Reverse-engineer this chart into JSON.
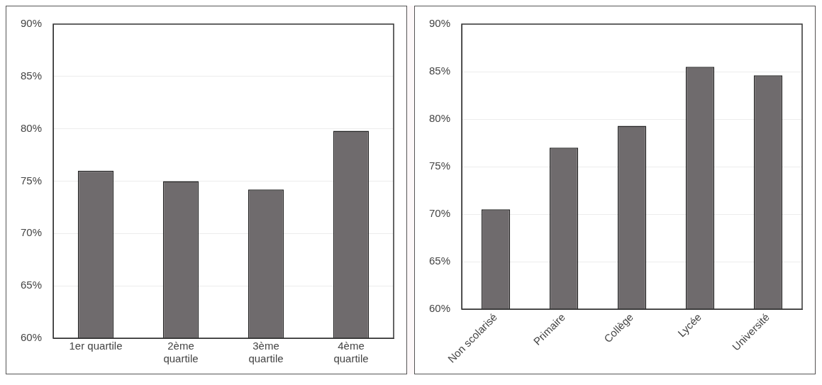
{
  "chart_data": [
    {
      "type": "bar",
      "categories": [
        "1er quartile",
        "2ème quartile",
        "3ème quartile",
        "4ème quartile"
      ],
      "values": [
        76,
        75,
        74.2,
        79.8
      ],
      "color": "#6f6b6d",
      "ylim": [
        60,
        90
      ],
      "yticks": [
        {
          "value": 60,
          "label": "60%"
        },
        {
          "value": 65,
          "label": "65%"
        },
        {
          "value": 70,
          "label": "70%"
        },
        {
          "value": 75,
          "label": "75%"
        },
        {
          "value": 80,
          "label": "80%"
        },
        {
          "value": 85,
          "label": "85%"
        },
        {
          "value": 90,
          "label": "90%"
        }
      ],
      "grid": "y"
    },
    {
      "type": "bar",
      "categories": [
        "Non scolarisé",
        "Primaire",
        "Collège",
        "Lycée",
        "Université"
      ],
      "values": [
        70.5,
        77,
        79.3,
        85.5,
        84.6
      ],
      "color": "#6f6b6d",
      "ylim": [
        60,
        90
      ],
      "yticks": [
        {
          "value": 60,
          "label": "60%"
        },
        {
          "value": 65,
          "label": "65%"
        },
        {
          "value": 70,
          "label": "70%"
        },
        {
          "value": 75,
          "label": "75%"
        },
        {
          "value": 80,
          "label": "80%"
        },
        {
          "value": 85,
          "label": "85%"
        },
        {
          "value": 90,
          "label": "90%"
        }
      ],
      "grid": "y"
    }
  ]
}
